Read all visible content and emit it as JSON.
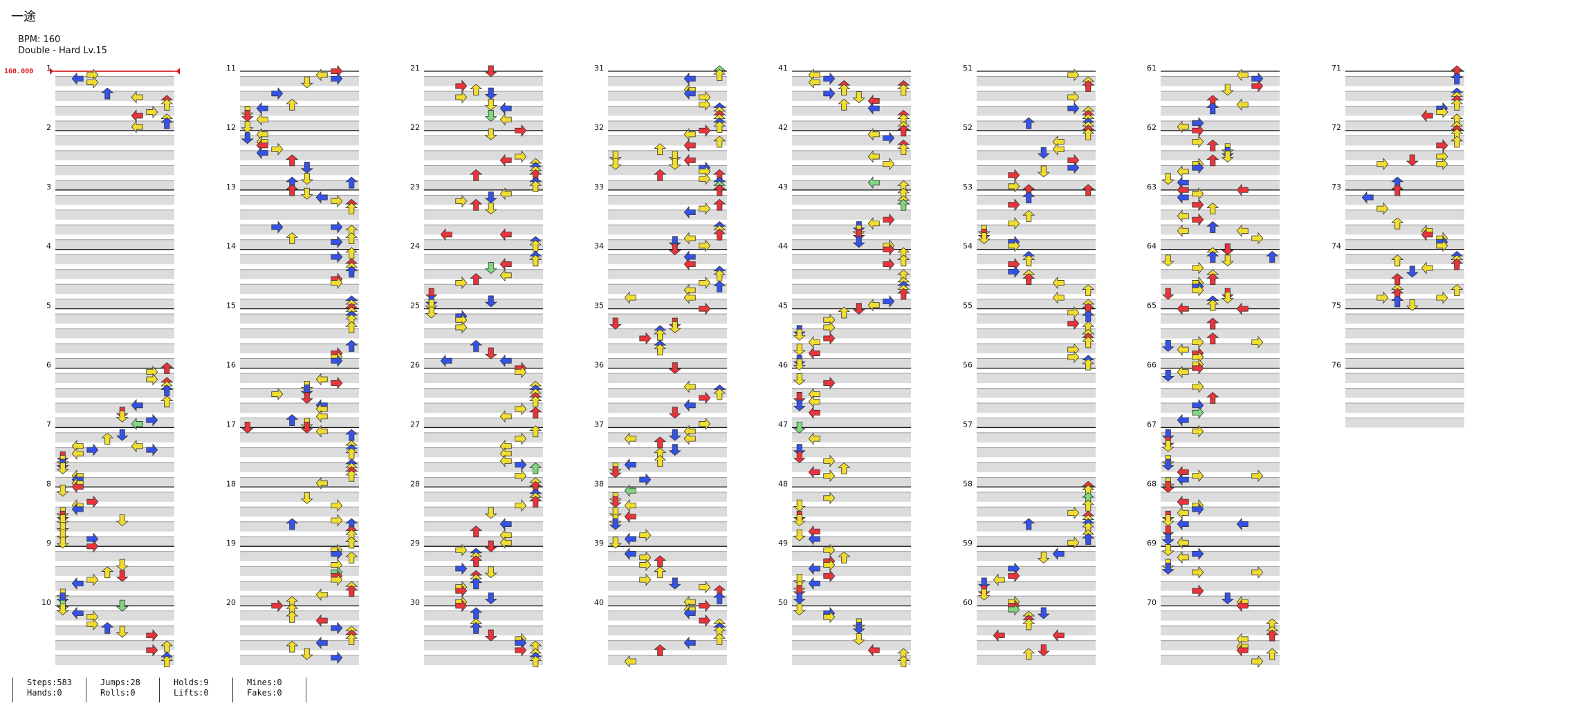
{
  "song": {
    "title": "一途",
    "bpm_label": "BPM: 160",
    "difficulty_label": "Double - Hard  Lv.15"
  },
  "bpm_marker": "160.000",
  "chart_data": {
    "type": "table",
    "measures": [
      "1",
      "2",
      "3",
      "4",
      "5",
      "6",
      "7",
      "8",
      "9",
      "10",
      "11",
      "12",
      "13",
      "14",
      "15",
      "16",
      "17",
      "18",
      "19",
      "20",
      "21",
      "22",
      "23",
      "24",
      "25",
      "26",
      "27",
      "28",
      "29",
      "30",
      "31",
      "32",
      "33",
      "34",
      "35",
      "36",
      "37",
      "38",
      "39",
      "40",
      "41",
      "42",
      "43",
      "44",
      "45",
      "46",
      "47",
      "48",
      "49",
      "50",
      "51",
      "52",
      "53",
      "54",
      "55",
      "56",
      "57",
      "58",
      "59",
      "60",
      "61",
      "62",
      "63",
      "64",
      "65",
      "66",
      "67",
      "68",
      "69",
      "70",
      "71",
      "72",
      "73",
      "74",
      "75",
      "76"
    ],
    "measures_per_column": 10,
    "columns": 8,
    "lanes_per_measure": 8,
    "arrow_colors": {
      "quarter": "#e8343a",
      "eighth": "#3452e8",
      "sixteenth": "#f0dd30",
      "hold": "#7fd87f"
    }
  },
  "stats": [
    {
      "top": "Steps:583",
      "bottom": "Hands:0"
    },
    {
      "top": "Jumps:28",
      "bottom": "Rolls:0"
    },
    {
      "top": "Holds:9",
      "bottom": "Lifts:0"
    },
    {
      "top": "Mines:0",
      "bottom": "Fakes:0"
    }
  ]
}
